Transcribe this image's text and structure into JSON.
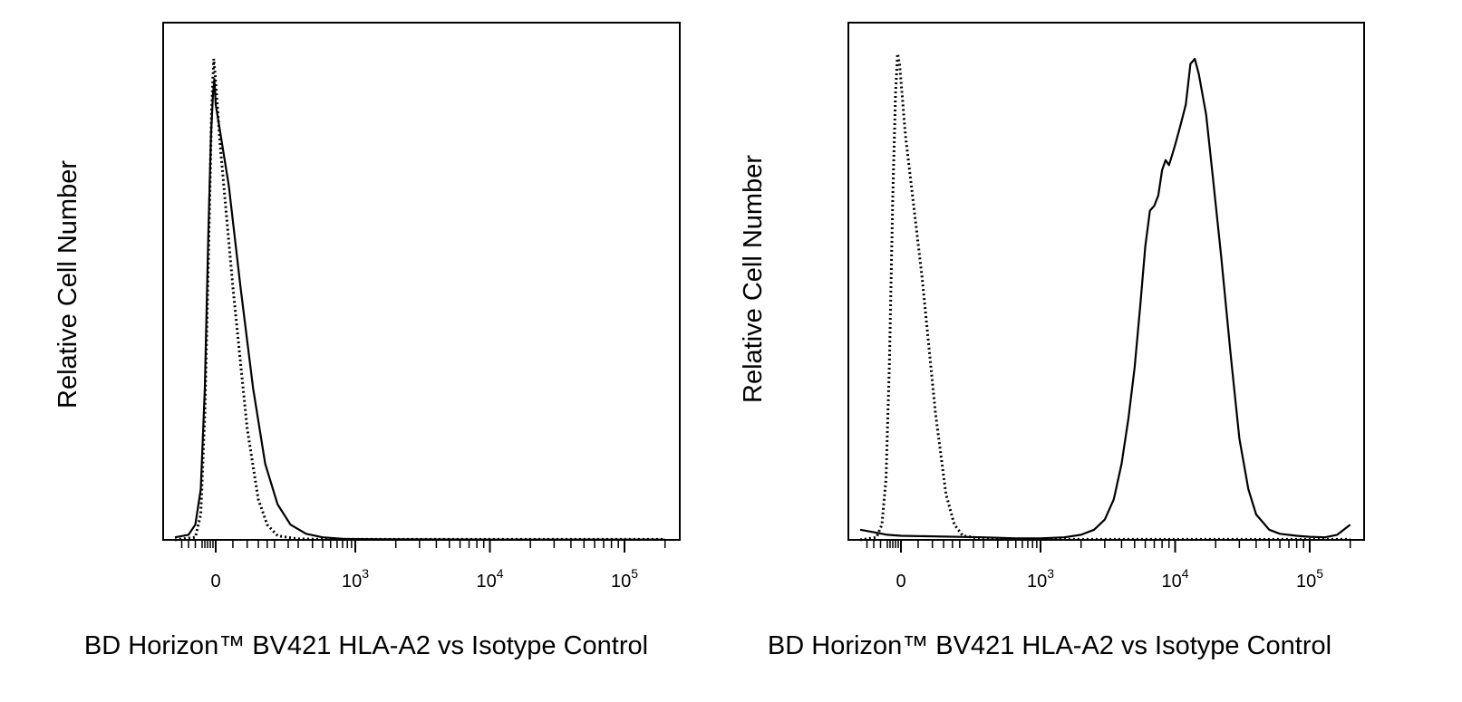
{
  "colors": {
    "background": "#ffffff",
    "line": "#000000"
  },
  "chart_data": [
    {
      "type": "line",
      "title": "",
      "xlabel": "BD Horizon™ BV421 HLA-A2 vs Isotype Control",
      "ylabel": "Relative Cell Number",
      "xscale": "biexponential",
      "xlim": [
        -300,
        200000
      ],
      "ylim": [
        0,
        100
      ],
      "grid": false,
      "legend": "none",
      "x_ticks": [
        {
          "value": 0,
          "base": "0",
          "exp": ""
        },
        {
          "value": 1000,
          "base": "10",
          "exp": "3"
        },
        {
          "value": 10000,
          "base": "10",
          "exp": "4"
        },
        {
          "value": 100000,
          "base": "10",
          "exp": "5"
        }
      ],
      "series": [
        {
          "style": "solid",
          "points": [
            [
              -300,
              0.5
            ],
            [
              -200,
              1
            ],
            [
              -150,
              3
            ],
            [
              -110,
              10
            ],
            [
              -80,
              30
            ],
            [
              -55,
              60
            ],
            [
              -35,
              80
            ],
            [
              -20,
              88
            ],
            [
              -10,
              91
            ],
            [
              0,
              86
            ],
            [
              15,
              70
            ],
            [
              30,
              50
            ],
            [
              50,
              30
            ],
            [
              75,
              15
            ],
            [
              110,
              7
            ],
            [
              160,
              3
            ],
            [
              250,
              1.2
            ],
            [
              400,
              0.5
            ],
            [
              700,
              0.2
            ],
            [
              1500,
              0.1
            ],
            [
              10000,
              0.05
            ],
            [
              100000,
              0.05
            ],
            [
              200000,
              0.05
            ]
          ]
        },
        {
          "style": "dotted",
          "points": [
            [
              -300,
              0
            ],
            [
              -150,
              0.5
            ],
            [
              -110,
              5
            ],
            [
              -80,
              25
            ],
            [
              -50,
              60
            ],
            [
              -30,
              85
            ],
            [
              -15,
              95
            ],
            [
              -5,
              92
            ],
            [
              5,
              78
            ],
            [
              20,
              50
            ],
            [
              40,
              22
            ],
            [
              60,
              8
            ],
            [
              80,
              3
            ],
            [
              110,
              0.8
            ],
            [
              200,
              0.2
            ],
            [
              400,
              0.1
            ],
            [
              200000,
              0.1
            ]
          ]
        }
      ]
    },
    {
      "type": "line",
      "title": "",
      "xlabel": "BD Horizon™ BV421 HLA-A2 vs Isotype Control",
      "ylabel": "Relative Cell Number",
      "xscale": "biexponential",
      "xlim": [
        -300,
        200000
      ],
      "ylim": [
        0,
        100
      ],
      "grid": false,
      "legend": "none",
      "x_ticks": [
        {
          "value": 0,
          "base": "0",
          "exp": ""
        },
        {
          "value": 1000,
          "base": "10",
          "exp": "3"
        },
        {
          "value": 10000,
          "base": "10",
          "exp": "4"
        },
        {
          "value": 100000,
          "base": "10",
          "exp": "5"
        }
      ],
      "series": [
        {
          "style": "solid",
          "points": [
            [
              -300,
              2
            ],
            [
              -200,
              1.5
            ],
            [
              -100,
              1
            ],
            [
              0,
              0.8
            ],
            [
              200,
              0.5
            ],
            [
              500,
              0.3
            ],
            [
              1000,
              0.3
            ],
            [
              1500,
              0.5
            ],
            [
              2000,
              1
            ],
            [
              2500,
              2
            ],
            [
              3000,
              4
            ],
            [
              3500,
              8
            ],
            [
              4000,
              15
            ],
            [
              4500,
              24
            ],
            [
              5000,
              34
            ],
            [
              5500,
              46
            ],
            [
              6000,
              58
            ],
            [
              6500,
              65
            ],
            [
              7000,
              66
            ],
            [
              7500,
              68
            ],
            [
              8000,
              73
            ],
            [
              8500,
              75
            ],
            [
              9000,
              74
            ],
            [
              9500,
              76
            ],
            [
              10000,
              78
            ],
            [
              11000,
              82
            ],
            [
              12000,
              86
            ],
            [
              13000,
              94
            ],
            [
              14000,
              95
            ],
            [
              15000,
              92
            ],
            [
              17000,
              84
            ],
            [
              19000,
              72
            ],
            [
              22000,
              56
            ],
            [
              26000,
              36
            ],
            [
              30000,
              20
            ],
            [
              35000,
              10
            ],
            [
              40000,
              5
            ],
            [
              50000,
              2
            ],
            [
              60000,
              1.2
            ],
            [
              80000,
              0.8
            ],
            [
              100000,
              0.6
            ],
            [
              130000,
              0.5
            ],
            [
              160000,
              1
            ],
            [
              200000,
              3
            ]
          ]
        },
        {
          "style": "dotted",
          "points": [
            [
              -300,
              0
            ],
            [
              -180,
              0.5
            ],
            [
              -140,
              3
            ],
            [
              -110,
              12
            ],
            [
              -85,
              35
            ],
            [
              -60,
              68
            ],
            [
              -40,
              88
            ],
            [
              -25,
              96
            ],
            [
              -10,
              94
            ],
            [
              5,
              80
            ],
            [
              25,
              52
            ],
            [
              45,
              25
            ],
            [
              65,
              9
            ],
            [
              85,
              3
            ],
            [
              110,
              0.8
            ],
            [
              200,
              0.2
            ],
            [
              400,
              0.1
            ],
            [
              200000,
              0.1
            ]
          ]
        }
      ]
    }
  ]
}
